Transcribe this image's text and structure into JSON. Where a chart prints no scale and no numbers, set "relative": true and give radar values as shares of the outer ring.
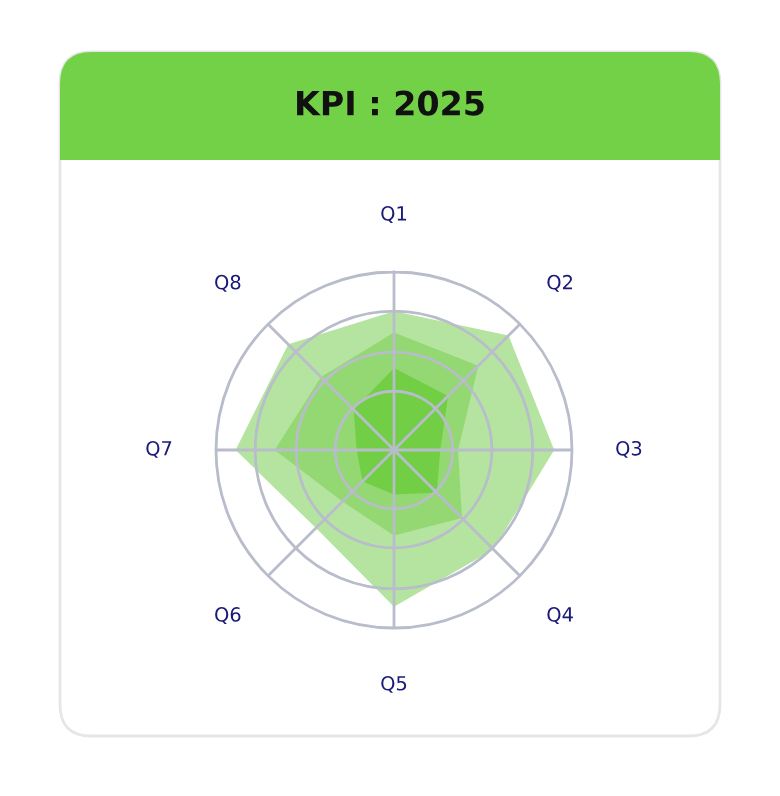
{
  "chart_data": {
    "type": "radar",
    "title": "KPI : 2025",
    "relative": true,
    "categories": [
      "Q1",
      "Q2",
      "Q3",
      "Q4",
      "Q5",
      "Q6",
      "Q7",
      "Q8"
    ],
    "series": [
      {
        "color": "#b5e4a0",
        "values": [
          0.78,
          0.91,
          0.9,
          0.79,
          0.88,
          0.62,
          0.89,
          0.84
        ]
      },
      {
        "color": "#93d872",
        "values": [
          0.66,
          0.67,
          0.36,
          0.54,
          0.48,
          0.41,
          0.67,
          0.58
        ]
      },
      {
        "color": "#72cf45",
        "values": [
          0.46,
          0.43,
          0.26,
          0.34,
          0.25,
          0.25,
          0.21,
          0.32
        ]
      }
    ],
    "grid": true,
    "legend": false
  }
}
